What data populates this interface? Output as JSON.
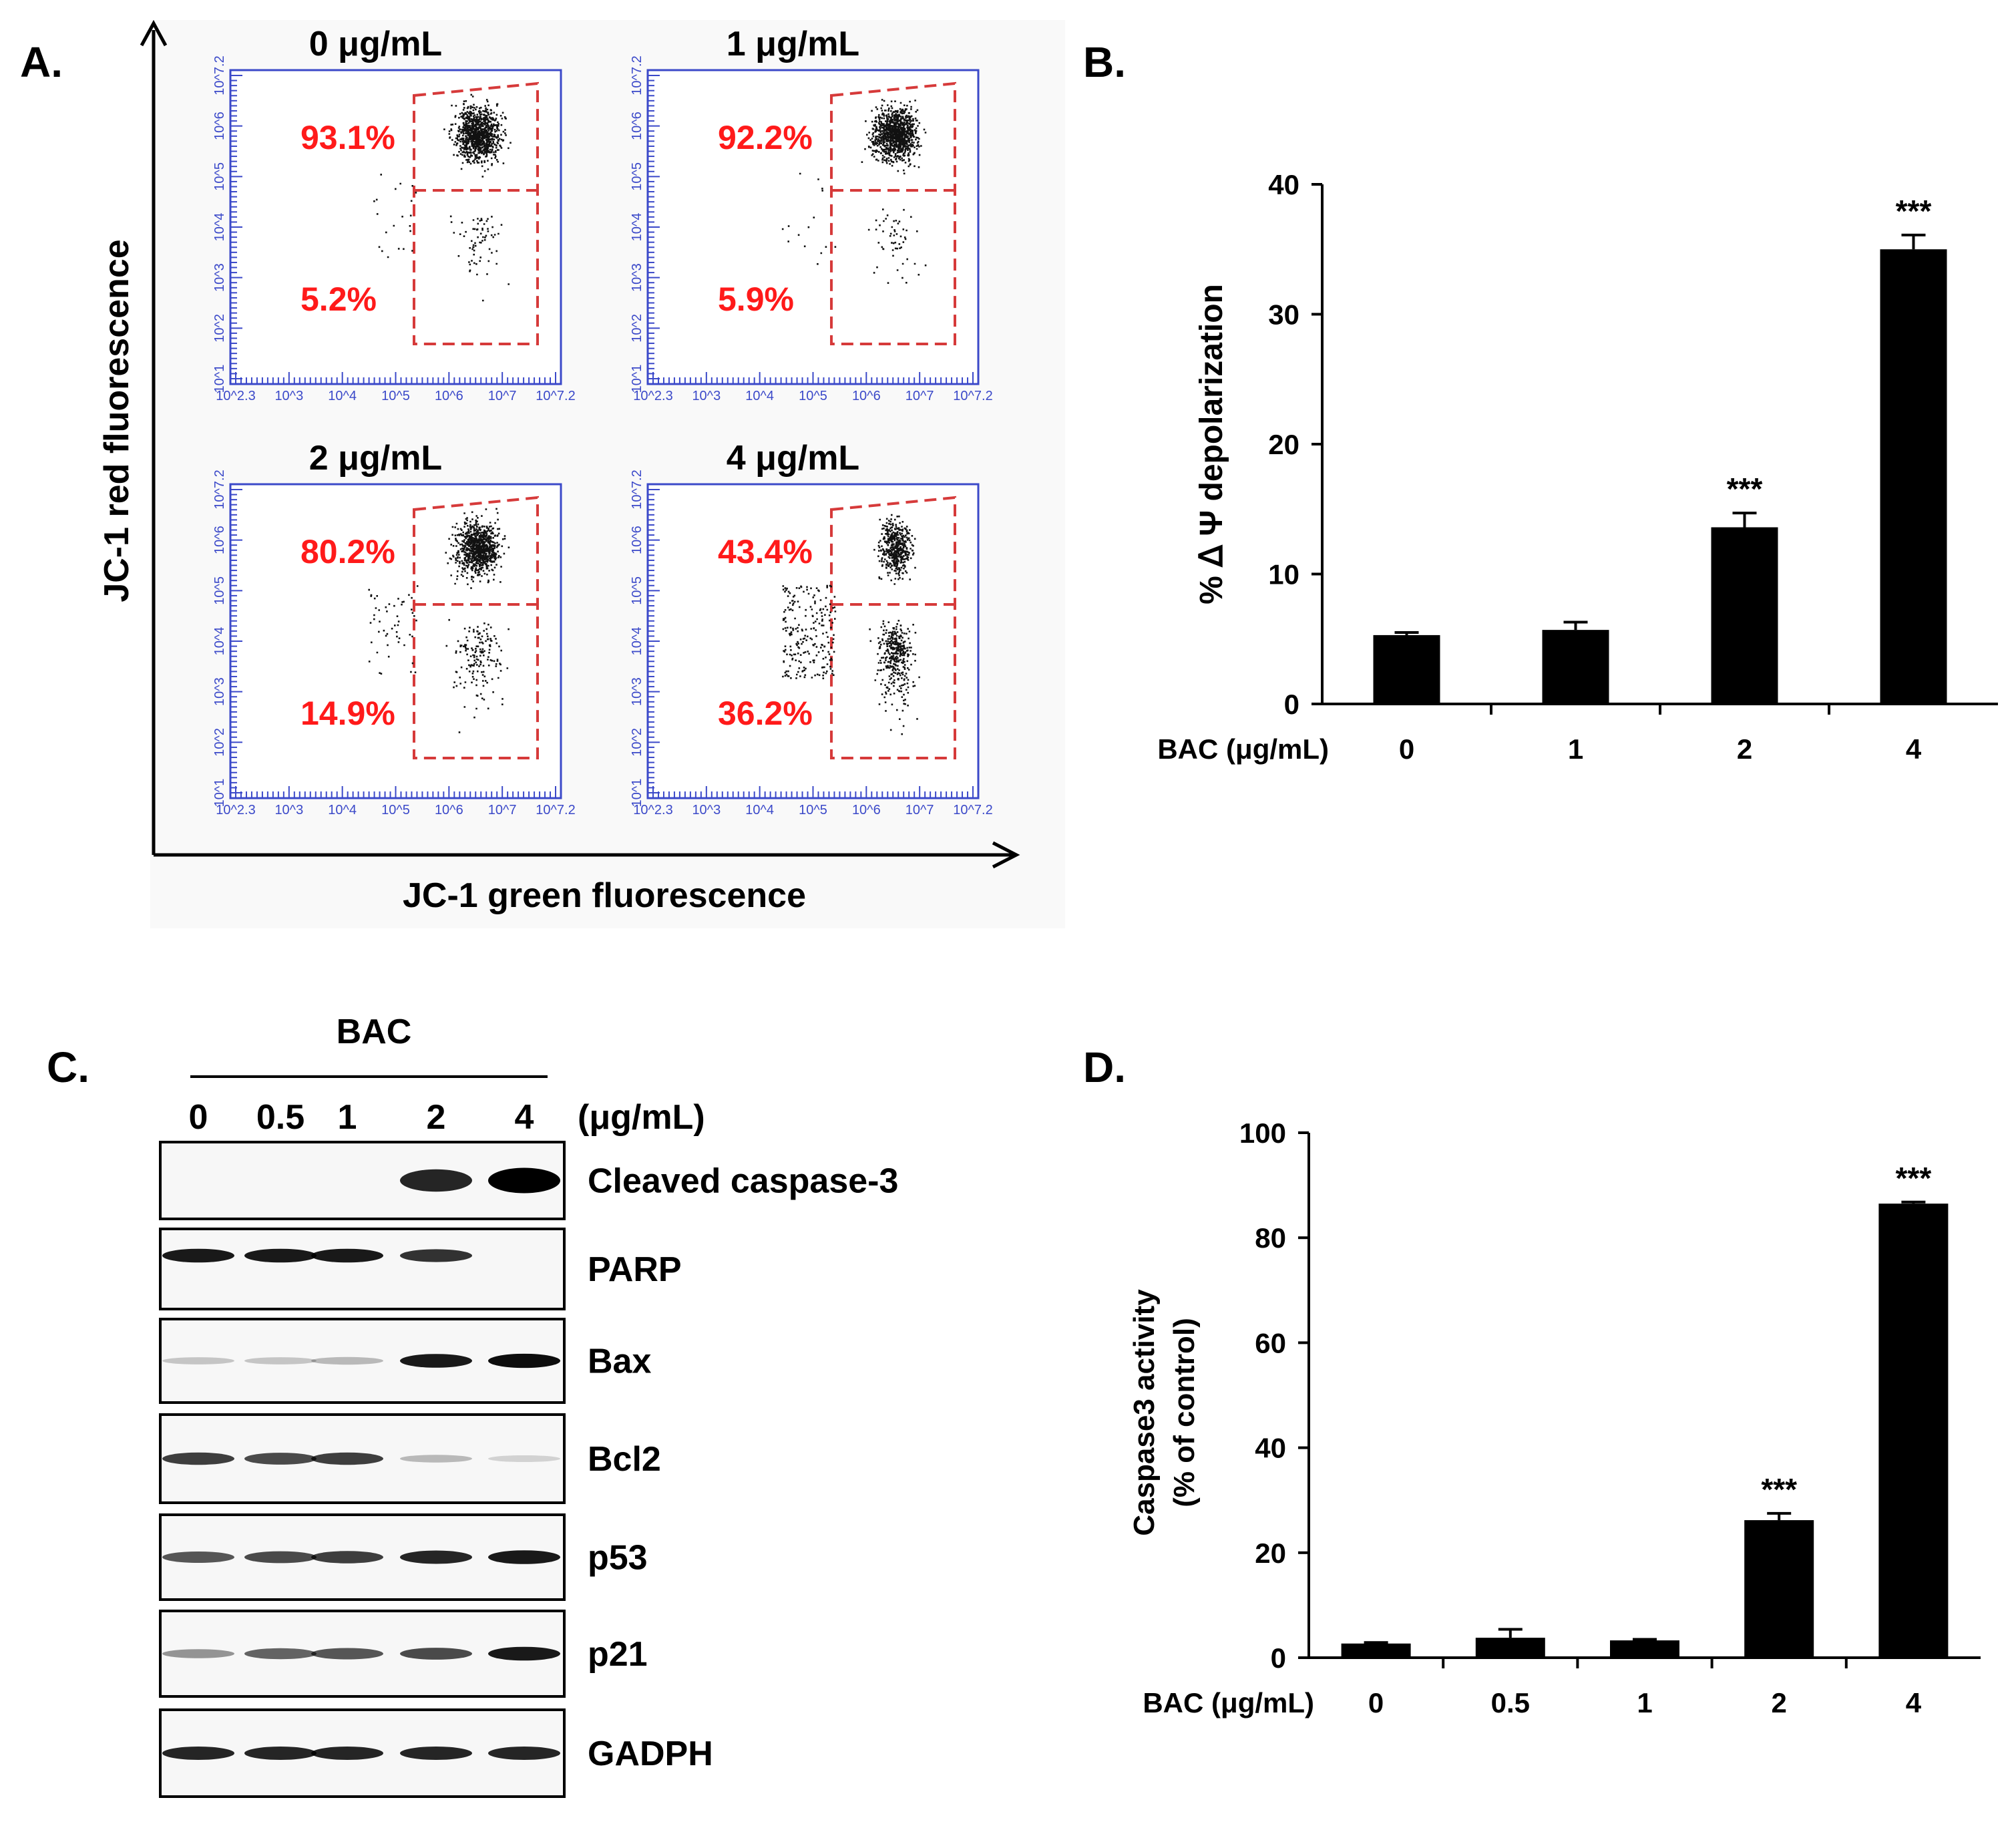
{
  "colors": {
    "bar": "#000000",
    "scatter_frame": "#3b49c9",
    "gate": "#d63a3a",
    "pct": "#ff1a1a",
    "dots": "#111111"
  },
  "panel_labels": {
    "a": "A.",
    "b": "B.",
    "c": "C.",
    "d": "D."
  },
  "panel_a": {
    "y_axis_label": "JC-1 red fluorescence",
    "x_axis_label": "JC-1 green fluorescence",
    "tick_labels": {
      "y": [
        "10^1",
        "10^2",
        "10^3",
        "10^4",
        "10^5",
        "10^6",
        "10^7.2"
      ],
      "x": [
        "10^2.3",
        "10^3",
        "10^4",
        "10^5",
        "10^6",
        "10^7",
        "10^7.2"
      ]
    },
    "plots": [
      {
        "title": "0 μg/mL",
        "upper_pct": "93.1%",
        "lower_pct": "5.2%"
      },
      {
        "title": "1 μg/mL",
        "upper_pct": "92.2%",
        "lower_pct": "5.9%"
      },
      {
        "title": "2 μg/mL",
        "upper_pct": "80.2%",
        "lower_pct": "14.9%"
      },
      {
        "title": "4 μg/mL",
        "upper_pct": "43.4%",
        "lower_pct": "36.2%"
      }
    ]
  },
  "chart_data": [
    {
      "id": "B",
      "type": "bar",
      "title": "",
      "xlabel": "BAC  (μg/mL)",
      "ylabel": "% ᐃ Ψ depolarization",
      "categories": [
        "0",
        "1",
        "2",
        "4"
      ],
      "values": [
        5.3,
        5.7,
        13.6,
        35.0
      ],
      "errors": [
        0.2,
        0.6,
        1.1,
        1.1
      ],
      "significance": [
        "",
        "",
        "***",
        "***"
      ],
      "ylim": [
        0,
        40
      ],
      "yticks": [
        0,
        10,
        20,
        30,
        40
      ],
      "grid": false
    },
    {
      "id": "D",
      "type": "bar",
      "title": "",
      "xlabel": "BAC  (μg/mL)",
      "ylabel_line1": "Caspase3 activity",
      "ylabel_line2": "(% of control)",
      "categories": [
        "0",
        "0.5",
        "1",
        "2",
        "4"
      ],
      "values": [
        2.7,
        3.8,
        3.3,
        26.2,
        86.5
      ],
      "errors": [
        0.2,
        1.6,
        0.2,
        1.3,
        0.3
      ],
      "significance": [
        "",
        "",
        "",
        "***",
        "***"
      ],
      "ylim": [
        0,
        100
      ],
      "yticks": [
        0,
        20,
        40,
        60,
        80,
        100
      ],
      "grid": false
    }
  ],
  "panel_c": {
    "treatment_label": "BAC",
    "unit_label": "(μg/mL)",
    "lanes": [
      "0",
      "0.5",
      "1",
      "2",
      "4"
    ],
    "blots": [
      {
        "name": "Cleaved caspase-3",
        "intensities": [
          0.0,
          0.0,
          0.0,
          0.85,
          1.0
        ]
      },
      {
        "name": "PARP",
        "intensities": [
          0.9,
          0.9,
          0.9,
          0.8,
          0.0
        ]
      },
      {
        "name": "Bax",
        "intensities": [
          0.2,
          0.2,
          0.25,
          0.9,
          0.95
        ]
      },
      {
        "name": "Bcl2",
        "intensities": [
          0.75,
          0.7,
          0.75,
          0.25,
          0.15
        ]
      },
      {
        "name": "p53",
        "intensities": [
          0.65,
          0.7,
          0.75,
          0.85,
          0.9
        ]
      },
      {
        "name": "p21",
        "intensities": [
          0.4,
          0.6,
          0.65,
          0.7,
          0.9
        ]
      },
      {
        "name": "GADPH",
        "intensities": [
          0.85,
          0.85,
          0.85,
          0.85,
          0.85
        ]
      }
    ]
  }
}
